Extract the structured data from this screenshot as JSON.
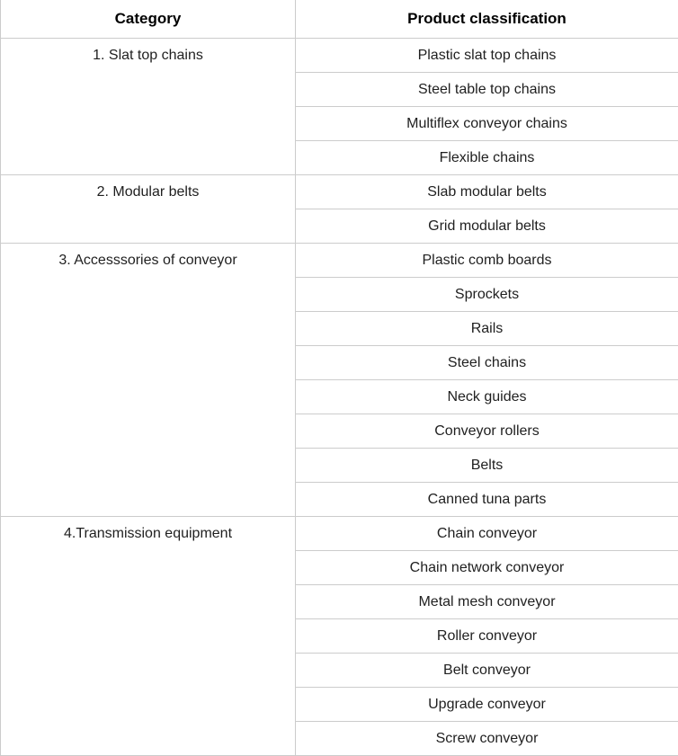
{
  "table": {
    "headers": {
      "category": "Category",
      "product_classification": "Product classification"
    },
    "groups": [
      {
        "category": "1. Slat top chains",
        "items": [
          "Plastic slat top chains",
          "Steel table top chains",
          "Multiflex conveyor chains",
          "Flexible chains"
        ]
      },
      {
        "category": "2. Modular belts",
        "items": [
          "Slab modular belts",
          "Grid modular belts"
        ]
      },
      {
        "category": "3. Accesssories of conveyor",
        "items": [
          "Plastic comb boards",
          "Sprockets",
          "Rails",
          "Steel chains",
          "Neck guides",
          "Conveyor rollers",
          "Belts",
          "Canned tuna parts"
        ]
      },
      {
        "category": "4.Transmission equipment",
        "items": [
          "Chain conveyor",
          "Chain network conveyor",
          "Metal mesh conveyor",
          "Roller conveyor",
          "Belt conveyor",
          "Upgrade conveyor",
          "Screw conveyor"
        ]
      }
    ],
    "colors": {
      "border": "#cccccc",
      "header_text": "#000000",
      "body_text": "#1f1f1f",
      "background": "#ffffff"
    }
  }
}
